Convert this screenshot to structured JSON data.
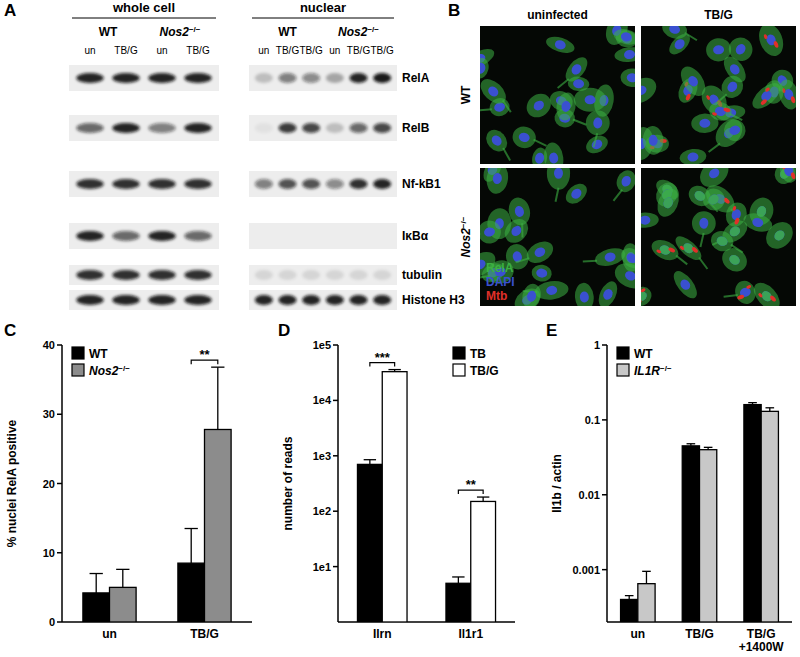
{
  "panel_labels": [
    "A",
    "B",
    "C",
    "D",
    "E"
  ],
  "blot": {
    "groups": [
      {
        "title": "whole cell",
        "genotypes": [
          {
            "name": "WT",
            "lanes": [
              "un",
              "TB/G"
            ]
          },
          {
            "name": "Nos2−/−",
            "lanes": [
              "un",
              "TB/G"
            ]
          }
        ]
      },
      {
        "title": "nuclear",
        "genotypes": [
          {
            "name": "WT",
            "lanes": [
              "un",
              "TB/G",
              "TB/G"
            ]
          },
          {
            "name": "Nos2−/−",
            "lanes": [
              "un",
              "TB/G",
              "TB/G"
            ]
          }
        ]
      }
    ],
    "rows": [
      {
        "label": "RelA",
        "intensity": [
          0.9,
          0.9,
          0.9,
          0.9,
          0.2,
          0.5,
          0.45,
          0.3,
          0.9,
          0.95
        ]
      },
      {
        "label": "RelB",
        "intensity": [
          0.6,
          0.9,
          0.5,
          0.9,
          0.05,
          0.8,
          0.75,
          0.2,
          0.6,
          0.75
        ]
      },
      {
        "label": "Nf-kB1",
        "intensity": [
          0.85,
          0.85,
          0.85,
          0.85,
          0.5,
          0.7,
          0.7,
          0.45,
          0.85,
          0.9
        ]
      },
      {
        "label": "IκBα",
        "intensity": [
          0.9,
          0.6,
          0.9,
          0.6,
          0,
          0,
          0,
          0,
          0,
          0
        ]
      },
      {
        "label": "tubulin",
        "intensity": [
          0.85,
          0.85,
          0.85,
          0.85,
          0.1,
          0.1,
          0.1,
          0.1,
          0.1,
          0.1
        ]
      },
      {
        "label": "Histone H3",
        "intensity": [
          0.9,
          0.9,
          0.9,
          0.9,
          0.9,
          0.9,
          0.9,
          0.9,
          0.9,
          0.9
        ]
      }
    ]
  },
  "microscopy": {
    "columns": [
      "uninfected",
      "TB/G"
    ],
    "rows": [
      "WT",
      "Nos2−/−"
    ],
    "channels": [
      {
        "name": "RelA",
        "color": "#3cb043"
      },
      {
        "name": "DAPI",
        "color": "#3a50d0"
      },
      {
        "name": "Mtb",
        "color": "#e0302a"
      }
    ],
    "images": [
      {
        "row": 0,
        "col": 0,
        "mtb": false,
        "nuclear_RelA": false
      },
      {
        "row": 0,
        "col": 1,
        "mtb": true,
        "nuclear_RelA": false
      },
      {
        "row": 1,
        "col": 0,
        "mtb": false,
        "nuclear_RelA": false
      },
      {
        "row": 1,
        "col": 1,
        "mtb": true,
        "nuclear_RelA": true
      }
    ]
  },
  "chart_data": [
    {
      "type": "bar",
      "ylabel": "% nuclei RelA positive",
      "categories": [
        "un",
        "TB/G"
      ],
      "series": [
        {
          "name": "WT",
          "color": "#000000",
          "values": [
            4.2,
            8.5
          ],
          "errors": [
            2.8,
            5.0
          ]
        },
        {
          "name": "Nos2−/−",
          "color": "#8c8c8c",
          "values": [
            5.0,
            27.8
          ],
          "errors": [
            2.6,
            9.0
          ]
        }
      ],
      "ylim": [
        0,
        40
      ],
      "yticks": [
        0,
        10,
        20,
        30,
        40
      ],
      "legend": "upper left",
      "annotations": [
        {
          "text": "**",
          "category": 1
        }
      ]
    },
    {
      "type": "bar",
      "ylabel": "number of reads",
      "log": "y",
      "categories": [
        "Ilrn",
        "Il1r1"
      ],
      "series": [
        {
          "name": "TB",
          "color": "#000000",
          "values": [
            700,
            5
          ],
          "errors": [
            150,
            1.5
          ]
        },
        {
          "name": "TB/G",
          "color": "#ffffff",
          "values": [
            33000,
            150
          ],
          "errors": [
            3000,
            30
          ]
        }
      ],
      "ylim": [
        1,
        100000
      ],
      "yticks": [
        {
          "value": 10,
          "label": "1e1"
        },
        {
          "value": 100,
          "label": "1e2"
        },
        {
          "value": 1000,
          "label": "1e3"
        },
        {
          "value": 10000,
          "label": "1e4"
        },
        {
          "value": 100000,
          "label": "1e5"
        }
      ],
      "legend": "upper right",
      "annotations": [
        {
          "text": "***",
          "category": 0
        },
        {
          "text": "**",
          "category": 1
        }
      ]
    },
    {
      "type": "bar",
      "ylabel": "Il1b / actin",
      "log": "y",
      "categories": [
        "un",
        "TB/G",
        "TB/G +1400W"
      ],
      "series": [
        {
          "name": "WT",
          "color": "#000000",
          "values": [
            0.0004,
            0.045,
            0.16
          ],
          "errors": [
            5e-05,
            0.003,
            0.01
          ]
        },
        {
          "name": "IL1R−/−",
          "color": "#c8c8c8",
          "values": [
            0.00065,
            0.04,
            0.13
          ],
          "errors": [
            0.0003,
            0.003,
            0.015
          ]
        }
      ],
      "ylim": [
        0.0002,
        1
      ],
      "yticks": [
        0.001,
        0.01,
        0.1,
        1
      ],
      "legend": "upper left"
    }
  ]
}
